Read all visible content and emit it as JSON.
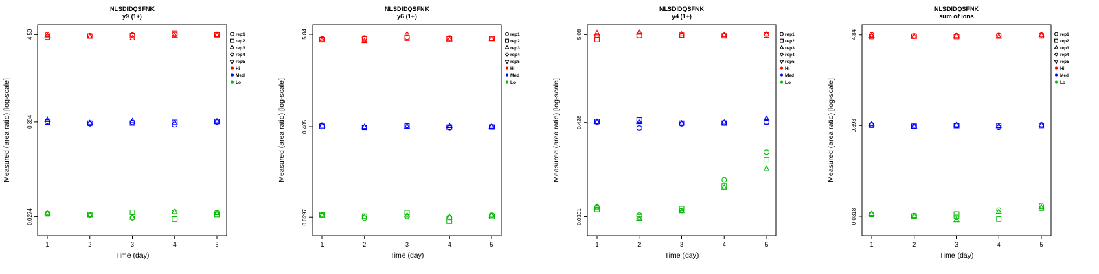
{
  "figure": {
    "title": "NLSDIDQSFNK",
    "xlabel": "Time (day)",
    "ylabel": "Measured (area ratio) [log-scale]"
  },
  "colors": {
    "hi": "#FF0000",
    "med": "#0000FF",
    "lo": "#00BB00",
    "axis": "#000000"
  },
  "legend": {
    "reps": [
      {
        "label": "rep1",
        "symbol": "circle"
      },
      {
        "label": "rep2",
        "symbol": "square"
      },
      {
        "label": "rep3",
        "symbol": "triangle-up"
      },
      {
        "label": "rep4",
        "symbol": "diamond"
      },
      {
        "label": "rep5",
        "symbol": "triangle-down"
      }
    ],
    "groups": [
      {
        "label": "Hi",
        "color": "#FF0000"
      },
      {
        "label": "Med",
        "color": "#0000FF"
      },
      {
        "label": "Lo",
        "color": "#00BB00"
      }
    ]
  },
  "chart_data": [
    {
      "type": "scatter",
      "title": "NLSDIDQSFNK",
      "subtitle": "y9 (1+)",
      "xlabel": "Time (day)",
      "ylabel": "Measured (area ratio) [log-scale]",
      "x": [
        1,
        2,
        3,
        4,
        5
      ],
      "log_y": true,
      "ylim": [
        0.0161,
        6.05
      ],
      "yticks": [
        {
          "label": "4.59",
          "value": 4.59
        },
        {
          "label": "0.394",
          "value": 0.394
        },
        {
          "label": "0.0274",
          "value": 0.0274
        }
      ],
      "series": [
        {
          "group": "Hi",
          "rep": "rep1",
          "symbol": "circle",
          "color": "#FF0000",
          "values": [
            4.6,
            4.45,
            4.55,
            4.6,
            4.65
          ]
        },
        {
          "group": "Hi",
          "rep": "rep2",
          "symbol": "square",
          "color": "#FF0000",
          "values": [
            4.25,
            4.4,
            4.45,
            4.75,
            4.55
          ]
        },
        {
          "group": "Hi",
          "rep": "rep3",
          "symbol": "triangle-up",
          "color": "#FF0000",
          "values": [
            4.45,
            4.3,
            4.1,
            4.4,
            4.5
          ]
        },
        {
          "group": "Med",
          "rep": "rep1",
          "symbol": "circle",
          "color": "#0000FF",
          "values": [
            0.4,
            0.372,
            0.39,
            0.362,
            0.392
          ]
        },
        {
          "group": "Med",
          "rep": "rep2",
          "symbol": "square",
          "color": "#0000FF",
          "values": [
            0.392,
            0.38,
            0.382,
            0.39,
            0.398
          ]
        },
        {
          "group": "Med",
          "rep": "rep3",
          "symbol": "triangle-up",
          "color": "#0000FF",
          "values": [
            0.415,
            0.381,
            0.402,
            0.379,
            0.401
          ]
        },
        {
          "group": "Lo",
          "rep": "rep1",
          "symbol": "circle",
          "color": "#00BB00",
          "values": [
            0.03,
            0.0286,
            0.0266,
            0.0314,
            0.031
          ]
        },
        {
          "group": "Lo",
          "rep": "rep2",
          "symbol": "square",
          "color": "#00BB00",
          "values": [
            0.0296,
            0.029,
            0.031,
            0.0256,
            0.029
          ]
        },
        {
          "group": "Lo",
          "rep": "rep3",
          "symbol": "triangle-up",
          "color": "#00BB00",
          "values": [
            0.03,
            0.0284,
            0.0267,
            0.0311,
            0.0302
          ]
        }
      ]
    },
    {
      "type": "scatter",
      "title": "NLSDIDQSFNK",
      "subtitle": "y6 (1+)",
      "xlabel": "Time (day)",
      "ylabel": "Measured (area ratio) [log-scale]",
      "x": [
        1,
        2,
        3,
        4,
        5
      ],
      "log_y": true,
      "ylim": [
        0.0175,
        7.7
      ],
      "yticks": [
        {
          "label": "5.84",
          "value": 5.84
        },
        {
          "label": "0.405",
          "value": 0.405
        },
        {
          "label": "0.0297",
          "value": 0.0297
        }
      ],
      "series": [
        {
          "group": "Hi",
          "rep": "rep1",
          "symbol": "circle",
          "color": "#FF0000",
          "values": [
            5.1,
            5.25,
            5.35,
            5.25,
            5.2
          ]
        },
        {
          "group": "Hi",
          "rep": "rep2",
          "symbol": "square",
          "color": "#FF0000",
          "values": [
            5.0,
            5.1,
            5.2,
            5.1,
            5.15
          ]
        },
        {
          "group": "Hi",
          "rep": "rep3",
          "symbol": "triangle-up",
          "color": "#FF0000",
          "values": [
            4.85,
            4.75,
            5.84,
            5.0,
            5.1
          ]
        },
        {
          "group": "Med",
          "rep": "rep1",
          "symbol": "circle",
          "color": "#0000FF",
          "values": [
            0.425,
            0.4,
            0.421,
            0.392,
            0.406
          ]
        },
        {
          "group": "Med",
          "rep": "rep2",
          "symbol": "square",
          "color": "#0000FF",
          "values": [
            0.41,
            0.396,
            0.412,
            0.4,
            0.401
          ]
        },
        {
          "group": "Med",
          "rep": "rep3",
          "symbol": "triangle-up",
          "color": "#0000FF",
          "values": [
            0.416,
            0.401,
            0.405,
            0.411,
            0.404
          ]
        },
        {
          "group": "Lo",
          "rep": "rep1",
          "symbol": "circle",
          "color": "#00BB00",
          "values": [
            0.0316,
            0.029,
            0.0306,
            0.0296,
            0.0316
          ]
        },
        {
          "group": "Lo",
          "rep": "rep2",
          "symbol": "square",
          "color": "#00BB00",
          "values": [
            0.032,
            0.0306,
            0.034,
            0.0266,
            0.0306
          ]
        },
        {
          "group": "Lo",
          "rep": "rep3",
          "symbol": "triangle-up",
          "color": "#00BB00",
          "values": [
            0.031,
            0.03,
            0.0312,
            0.0296,
            0.0311
          ]
        }
      ]
    },
    {
      "type": "scatter",
      "title": "NLSDIDQSFNK",
      "subtitle": "y4 (1+)",
      "xlabel": "Time (day)",
      "ylabel": "Measured (area ratio) [log-scale]",
      "x": [
        1,
        2,
        3,
        4,
        5
      ],
      "log_y": true,
      "ylim": [
        0.0177,
        6.7
      ],
      "yticks": [
        {
          "label": "5.08",
          "value": 5.08
        },
        {
          "label": "0.428",
          "value": 0.428
        },
        {
          "label": "0.0301",
          "value": 0.0301
        }
      ],
      "series": [
        {
          "group": "Hi",
          "rep": "rep1",
          "symbol": "circle",
          "color": "#FF0000",
          "values": [
            4.9,
            4.9,
            4.95,
            4.95,
            5.15
          ]
        },
        {
          "group": "Hi",
          "rep": "rep2",
          "symbol": "square",
          "color": "#FF0000",
          "values": [
            4.4,
            4.95,
            5.0,
            4.9,
            5.0
          ]
        },
        {
          "group": "Hi",
          "rep": "rep3",
          "symbol": "triangle-up",
          "color": "#FF0000",
          "values": [
            5.25,
            5.35,
            5.1,
            5.0,
            5.1
          ]
        },
        {
          "group": "Med",
          "rep": "rep1",
          "symbol": "circle",
          "color": "#0000FF",
          "values": [
            0.43,
            0.365,
            0.41,
            0.42,
            0.43
          ]
        },
        {
          "group": "Med",
          "rep": "rep2",
          "symbol": "square",
          "color": "#0000FF",
          "values": [
            0.44,
            0.46,
            0.42,
            0.421,
            0.436
          ]
        },
        {
          "group": "Med",
          "rep": "rep3",
          "symbol": "triangle-up",
          "color": "#0000FF",
          "values": [
            0.436,
            0.43,
            0.416,
            0.426,
            0.47
          ]
        },
        {
          "group": "Lo",
          "rep": "rep1",
          "symbol": "circle",
          "color": "#00BB00",
          "values": [
            0.04,
            0.0315,
            0.036,
            0.085,
            0.185
          ]
        },
        {
          "group": "Lo",
          "rep": "rep2",
          "symbol": "square",
          "color": "#00BB00",
          "values": [
            0.037,
            0.03,
            0.038,
            0.072,
            0.15
          ]
        },
        {
          "group": "Lo",
          "rep": "rep3",
          "symbol": "triangle-up",
          "color": "#00BB00",
          "values": [
            0.039,
            0.0285,
            0.035,
            0.068,
            0.115
          ]
        }
      ]
    },
    {
      "type": "scatter",
      "title": "NLSDIDQSFNK",
      "subtitle": "sum of ions",
      "xlabel": "Time (day)",
      "ylabel": "Measured (area ratio) [log-scale]",
      "x": [
        1,
        2,
        3,
        4,
        5
      ],
      "log_y": true,
      "ylim": [
        0.0187,
        6.4
      ],
      "yticks": [
        {
          "label": "4.84",
          "value": 4.84
        },
        {
          "label": "0.393",
          "value": 0.393
        },
        {
          "label": "0.0318",
          "value": 0.0318
        }
      ],
      "series": [
        {
          "group": "Hi",
          "rep": "rep1",
          "symbol": "circle",
          "color": "#FF0000",
          "values": [
            4.85,
            4.72,
            4.73,
            4.78,
            4.82
          ]
        },
        {
          "group": "Hi",
          "rep": "rep2",
          "symbol": "square",
          "color": "#FF0000",
          "values": [
            4.6,
            4.65,
            4.6,
            4.68,
            4.7
          ]
        },
        {
          "group": "Hi",
          "rep": "rep3",
          "symbol": "triangle-up",
          "color": "#FF0000",
          "values": [
            4.7,
            4.6,
            4.66,
            4.58,
            4.76
          ]
        },
        {
          "group": "Med",
          "rep": "rep1",
          "symbol": "circle",
          "color": "#0000FF",
          "values": [
            0.401,
            0.381,
            0.396,
            0.372,
            0.401
          ]
        },
        {
          "group": "Med",
          "rep": "rep2",
          "symbol": "square",
          "color": "#0000FF",
          "values": [
            0.396,
            0.386,
            0.391,
            0.391,
            0.392
          ]
        },
        {
          "group": "Med",
          "rep": "rep3",
          "symbol": "triangle-up",
          "color": "#0000FF",
          "values": [
            0.406,
            0.381,
            0.396,
            0.386,
            0.396
          ]
        },
        {
          "group": "Lo",
          "rep": "rep1",
          "symbol": "circle",
          "color": "#00BB00",
          "values": [
            0.034,
            0.0326,
            0.031,
            0.038,
            0.043
          ]
        },
        {
          "group": "Lo",
          "rep": "rep2",
          "symbol": "square",
          "color": "#00BB00",
          "values": [
            0.0336,
            0.032,
            0.034,
            0.0296,
            0.04
          ]
        },
        {
          "group": "Lo",
          "rep": "rep3",
          "symbol": "triangle-up",
          "color": "#00BB00",
          "values": [
            0.034,
            0.032,
            0.0286,
            0.036,
            0.041
          ]
        }
      ]
    }
  ]
}
